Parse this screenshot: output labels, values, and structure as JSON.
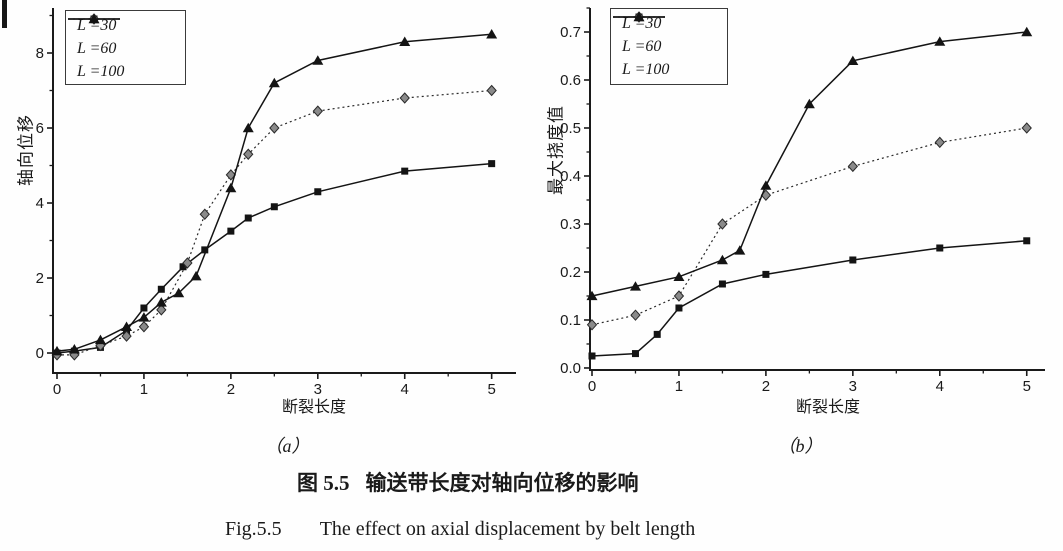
{
  "figure": {
    "sublabel_a": "（a）",
    "sublabel_b": "（b）",
    "caption_cn_prefix": "图 5.5",
    "caption_cn_text": "输送带长度对轴向位移的影响",
    "caption_en_prefix": "Fig.5.5",
    "caption_en_text": "The effect on axial displacement by belt length"
  },
  "chart_data": [
    {
      "id": "a",
      "type": "line",
      "title": "",
      "xlabel": "断裂长度",
      "ylabel": "轴向位移",
      "xlim": [
        -0.046,
        5.28
      ],
      "ylim": [
        -0.533,
        9.2
      ],
      "xticks": [
        0,
        1,
        2,
        3,
        4,
        5
      ],
      "xticklabels": [
        "0",
        "1",
        "2",
        "3",
        "4",
        "5"
      ],
      "xminor": 0.5,
      "yticks": [
        0,
        2,
        4,
        6,
        8
      ],
      "yticklabels": [
        "0",
        "2",
        "4",
        "6",
        "8"
      ],
      "yminor": 1,
      "grid": false,
      "legend_position": "top-left",
      "axis_color": "#1a1a1a",
      "series": [
        {
          "name": "L =30",
          "marker": "square",
          "line": "solid",
          "color": "#141414",
          "marker_fill": "#141414",
          "points": [
            [
              0,
              0
            ],
            [
              0.2,
              0.05
            ],
            [
              0.5,
              0.15
            ],
            [
              0.8,
              0.6
            ],
            [
              1,
              1.2
            ],
            [
              1.2,
              1.7
            ],
            [
              1.45,
              2.3
            ],
            [
              1.7,
              2.75
            ],
            [
              2,
              3.25
            ],
            [
              2.2,
              3.6
            ],
            [
              2.5,
              3.9
            ],
            [
              3,
              4.3
            ],
            [
              4,
              4.85
            ],
            [
              5,
              5.05
            ]
          ]
        },
        {
          "name": "L =60",
          "marker": "diamond",
          "line": "dotted",
          "color": "#2a2a2a",
          "marker_fill": "#8a8a8a",
          "points": [
            [
              0,
              -0.05
            ],
            [
              0.2,
              -0.05
            ],
            [
              0.5,
              0.2
            ],
            [
              0.8,
              0.45
            ],
            [
              1,
              0.7
            ],
            [
              1.2,
              1.15
            ],
            [
              1.5,
              2.4
            ],
            [
              1.7,
              3.7
            ],
            [
              2,
              4.75
            ],
            [
              2.2,
              5.3
            ],
            [
              2.5,
              6.0
            ],
            [
              3,
              6.45
            ],
            [
              4,
              6.8
            ],
            [
              5,
              7.0
            ]
          ]
        },
        {
          "name": "L =100",
          "marker": "triangle",
          "line": "solid",
          "color": "#141414",
          "marker_fill": "#141414",
          "points": [
            [
              0,
              0.05
            ],
            [
              0.2,
              0.1
            ],
            [
              0.5,
              0.35
            ],
            [
              0.8,
              0.7
            ],
            [
              1,
              0.95
            ],
            [
              1.2,
              1.35
            ],
            [
              1.4,
              1.6
            ],
            [
              1.6,
              2.05
            ],
            [
              2,
              4.4
            ],
            [
              2.2,
              6.0
            ],
            [
              2.5,
              7.2
            ],
            [
              3,
              7.8
            ],
            [
              4,
              8.3
            ],
            [
              5,
              8.5
            ]
          ]
        }
      ]
    },
    {
      "id": "b",
      "type": "line",
      "title": "",
      "xlabel": "断裂长度",
      "ylabel": "最大挠度值",
      "xlim": [
        -0.023,
        5.21
      ],
      "ylim": [
        -0.0042,
        0.75
      ],
      "xticks": [
        0,
        1,
        2,
        3,
        4,
        5
      ],
      "xticklabels": [
        "0",
        "1",
        "2",
        "3",
        "4",
        "5"
      ],
      "xminor": 0.5,
      "yticks": [
        0,
        0.1,
        0.2,
        0.3,
        0.4,
        0.5,
        0.6,
        0.7
      ],
      "yticklabels": [
        "0.0",
        "0.1",
        "0.2",
        "0.3",
        "0.4",
        "0.5",
        "0.6",
        "0.7"
      ],
      "yminor": 0.05,
      "grid": false,
      "legend_position": "top-left",
      "axis_color": "#1a1a1a",
      "series": [
        {
          "name": "L =30",
          "marker": "square",
          "line": "solid",
          "color": "#141414",
          "marker_fill": "#141414",
          "points": [
            [
              0,
              0.025
            ],
            [
              0.5,
              0.03
            ],
            [
              0.75,
              0.07
            ],
            [
              1,
              0.125
            ],
            [
              1.5,
              0.175
            ],
            [
              2,
              0.195
            ],
            [
              3,
              0.225
            ],
            [
              4,
              0.25
            ],
            [
              5,
              0.265
            ]
          ]
        },
        {
          "name": "L =60",
          "marker": "diamond",
          "line": "dotted",
          "color": "#2a2a2a",
          "marker_fill": "#8a8a8a",
          "points": [
            [
              0,
              0.09
            ],
            [
              0.5,
              0.11
            ],
            [
              1,
              0.15
            ],
            [
              1.5,
              0.3
            ],
            [
              2,
              0.36
            ],
            [
              3,
              0.42
            ],
            [
              4,
              0.47
            ],
            [
              5,
              0.5
            ]
          ]
        },
        {
          "name": "L =100",
          "marker": "triangle",
          "line": "solid",
          "color": "#141414",
          "marker_fill": "#141414",
          "points": [
            [
              0,
              0.15
            ],
            [
              0.5,
              0.17
            ],
            [
              1,
              0.19
            ],
            [
              1.5,
              0.225
            ],
            [
              1.7,
              0.245
            ],
            [
              2,
              0.38
            ],
            [
              2.5,
              0.55
            ],
            [
              3,
              0.64
            ],
            [
              4,
              0.68
            ],
            [
              5,
              0.7
            ]
          ]
        }
      ]
    }
  ]
}
